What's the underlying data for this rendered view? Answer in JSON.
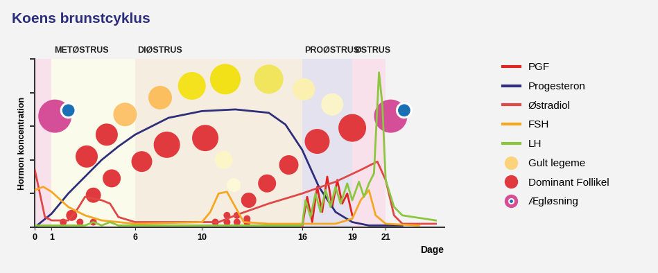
{
  "chart_data": {
    "type": "line",
    "title": "Koens brunstcyklus",
    "x_label": "Dage",
    "y_label": "Hormon koncentration",
    "xlim": [
      0,
      24.5
    ],
    "xticks": [
      0,
      1,
      6,
      10,
      16,
      19,
      21
    ],
    "ylim": [
      0,
      100
    ],
    "yticks": [
      0,
      20,
      40,
      60,
      80,
      100
    ],
    "tick_labels": "x",
    "grid": false,
    "legend": "center left",
    "phases": [
      {
        "name": null,
        "start": 0,
        "end": 1,
        "color": "#f9e1ec"
      },
      {
        "name": "METØSTRUS",
        "start": 1,
        "end": 6,
        "color": "#fafbeb"
      },
      {
        "name": "DIØSTRUS",
        "start": 6,
        "end": 16,
        "color": "#f5ede0"
      },
      {
        "name": "PROØSTRUS",
        "start": 16,
        "end": 19,
        "color": "#e4e2ef"
      },
      {
        "name": "ØSTRUS",
        "start": 19,
        "end": 21,
        "color": "#f9e1ec"
      }
    ],
    "series": [
      {
        "name": "PGF",
        "type": "line",
        "color": "#e02424",
        "x": [
          16,
          16.3,
          16.6,
          16.9,
          17.2,
          17.5,
          17.8,
          18.1,
          18.4,
          18.7,
          19
        ],
        "values": [
          0,
          18,
          3,
          24,
          9,
          30,
          12,
          28,
          14,
          20,
          7
        ]
      },
      {
        "name": "Progesteron",
        "type": "line",
        "color": "#2e2e7a",
        "x": [
          0,
          1,
          2,
          3,
          4,
          5,
          6,
          8,
          10,
          12,
          14,
          15,
          16,
          17,
          18,
          19,
          20,
          22
        ],
        "values": [
          0,
          8,
          20,
          30,
          40,
          48,
          55,
          65,
          69,
          70,
          68,
          61,
          46,
          24,
          9,
          3,
          1,
          1
        ]
      },
      {
        "name": "Østradiol",
        "type": "line",
        "color": "#e04848",
        "x": [
          0,
          0.3,
          0.6,
          1,
          2,
          2.5,
          3,
          4,
          4.5,
          5,
          6,
          8,
          10,
          11,
          12,
          14,
          16,
          18,
          19.5,
          20.5,
          21,
          21.5,
          22,
          24
        ],
        "values": [
          34,
          20,
          6,
          4,
          4,
          10,
          18,
          16,
          14,
          6,
          3,
          3,
          3,
          3,
          7,
          14,
          20,
          27,
          34,
          39,
          28,
          7,
          2,
          2
        ]
      },
      {
        "name": "FSH",
        "type": "line",
        "color": "#f5a623",
        "x": [
          0,
          0.5,
          1,
          2,
          3,
          4,
          6,
          10,
          10.5,
          11,
          11.5,
          12,
          12.5,
          14,
          18,
          19,
          19.5,
          20,
          20.4,
          21,
          23
        ],
        "values": [
          22,
          24,
          21,
          12,
          7,
          4,
          2,
          3,
          9,
          20,
          21,
          12,
          3,
          2,
          2,
          5,
          16,
          22,
          7,
          2,
          1
        ]
      },
      {
        "name": "LH",
        "type": "line",
        "color": "#8cc63f",
        "x": [
          0,
          3,
          3.5,
          4,
          4.5,
          5,
          6,
          10,
          16,
          16.2,
          16.5,
          16.8,
          17.1,
          17.4,
          17.7,
          18,
          18.3,
          18.7,
          19,
          19.4,
          19.7,
          20,
          20.3,
          20.6,
          20.8,
          21,
          21.5,
          22,
          24
        ],
        "values": [
          1,
          1,
          3,
          1,
          3,
          1,
          1,
          1,
          1,
          16,
          6,
          20,
          9,
          22,
          12,
          24,
          14,
          26,
          16,
          27,
          18,
          26,
          32,
          92,
          73,
          28,
          12,
          7,
          4
        ]
      },
      {
        "name": "Gult legeme",
        "type": "scatter",
        "color": "#fcd27d",
        "marker": "circle",
        "x": [
          5.4,
          7.5,
          9.4,
          11.4,
          14,
          16.1,
          17.8,
          11.3,
          11.9
        ],
        "values": [
          67,
          77,
          84,
          88,
          88,
          82,
          73,
          40,
          25
        ],
        "sizes": [
          17,
          17,
          20,
          22,
          21,
          16,
          16,
          13,
          10
        ],
        "colors": [
          "#fcc36c",
          "#fbbf5f",
          "#f4e21e",
          "#f2e018",
          "#f0e55c",
          "#fbf0b0",
          "#fbf4c8",
          "#fbf5c8",
          "#fcf8d8"
        ]
      },
      {
        "name": "Dominant Follikel",
        "type": "scatter",
        "color": "#e03a3e",
        "marker": "circle",
        "x": [
          4.3,
          3.1,
          4.6,
          3.5,
          2.2,
          1.7,
          2.7,
          3.5,
          7.9,
          10.2,
          6.4,
          10.8,
          11.5,
          12.1,
          12.7,
          11.5,
          12.1,
          12.7,
          12.8,
          13.9,
          15.2,
          16.9,
          19
        ],
        "values": [
          55,
          42,
          29,
          19,
          7,
          3,
          3,
          3,
          49,
          53,
          39,
          3,
          7,
          7,
          5,
          3,
          3,
          3,
          16,
          26,
          37,
          51,
          59
        ],
        "sizes": [
          16,
          16,
          13,
          11,
          8,
          5,
          5,
          5,
          19,
          19,
          15,
          5,
          5,
          5,
          5,
          5,
          5,
          5,
          11,
          13,
          14,
          18,
          20
        ]
      },
      {
        "name": "Ægløsning",
        "type": "scatter",
        "color": "#d44f97",
        "marker": "eye",
        "x": [
          1.2,
          21.3
        ],
        "values": [
          66,
          66
        ],
        "sizes": [
          24,
          24
        ]
      }
    ]
  }
}
